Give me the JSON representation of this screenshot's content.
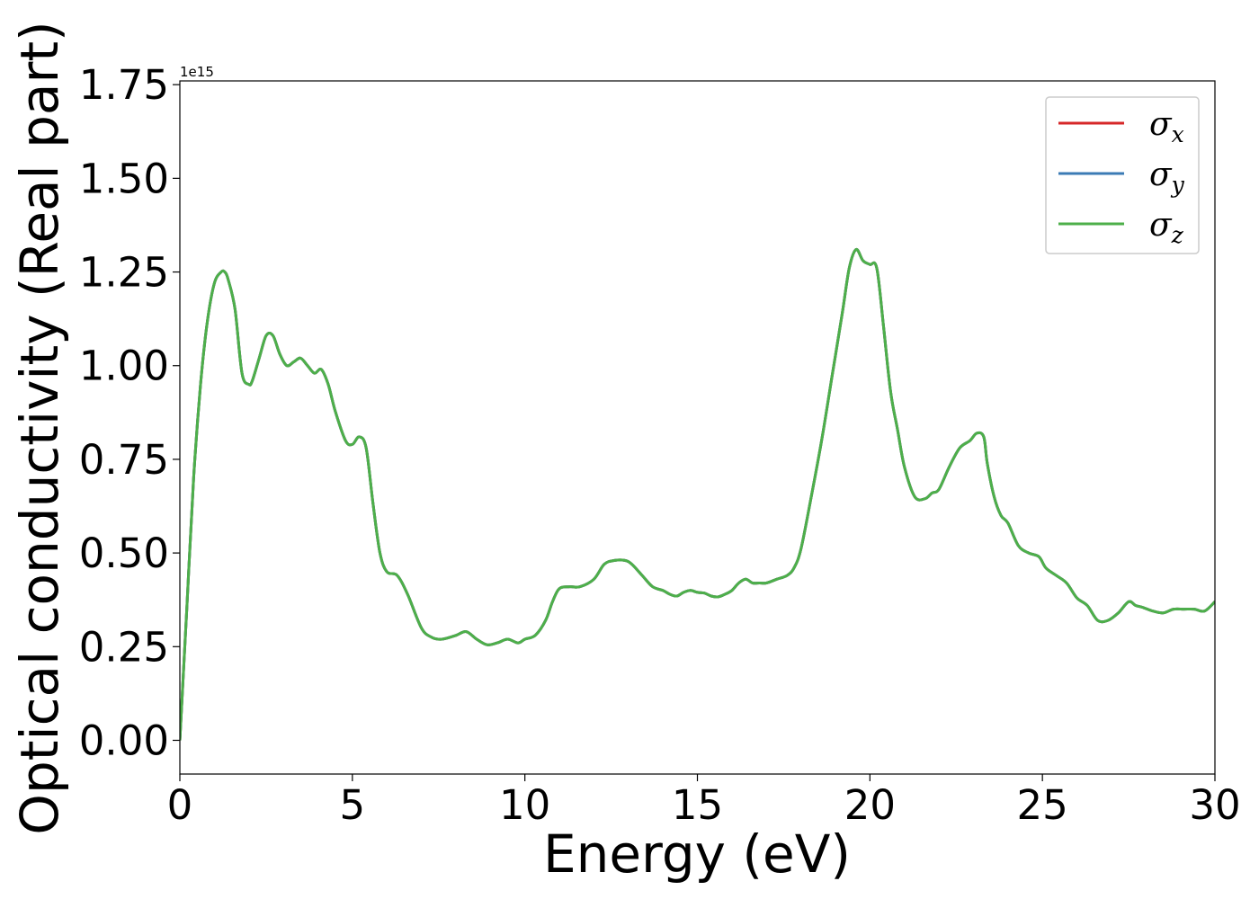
{
  "chart_data": {
    "type": "line",
    "xlabel": "Energy (eV)",
    "ylabel": "Optical conductivity (Real part)",
    "y_offset_text": "1e15",
    "xlim": [
      0,
      30
    ],
    "ylim": [
      -0.09,
      1.76
    ],
    "y_scale": 1000000000000000.0,
    "x_ticks": [
      0,
      5,
      10,
      15,
      20,
      25,
      30
    ],
    "x_tick_labels": [
      "0",
      "5",
      "10",
      "15",
      "20",
      "25",
      "30"
    ],
    "y_ticks": [
      0.0,
      0.25,
      0.5,
      0.75,
      1.0,
      1.25,
      1.5,
      1.75
    ],
    "y_tick_labels": [
      "0.00",
      "0.25",
      "0.50",
      "0.75",
      "1.00",
      "1.25",
      "1.50",
      "1.75"
    ],
    "grid": false,
    "legend_position": "top-right",
    "series": [
      {
        "name": "σ",
        "subscript": "x",
        "color": "#d62728"
      },
      {
        "name": "σ",
        "subscript": "y",
        "color": "#3b7bb5"
      },
      {
        "name": "σ",
        "subscript": "z",
        "color": "#4daf4a"
      }
    ],
    "x": [
      0,
      0.2,
      0.4,
      0.6,
      0.8,
      1.0,
      1.2,
      1.3,
      1.4,
      1.6,
      1.8,
      2.0,
      2.1,
      2.3,
      2.5,
      2.7,
      2.9,
      3.1,
      3.3,
      3.5,
      3.7,
      3.9,
      4.1,
      4.3,
      4.5,
      4.8,
      5.0,
      5.2,
      5.4,
      5.6,
      5.8,
      6.0,
      6.3,
      6.6,
      7.0,
      7.3,
      7.6,
      8.0,
      8.3,
      8.6,
      8.9,
      9.2,
      9.5,
      9.8,
      10.0,
      10.3,
      10.6,
      10.8,
      11.0,
      11.3,
      11.6,
      12.0,
      12.3,
      12.6,
      12.9,
      13.1,
      13.4,
      13.7,
      14.0,
      14.2,
      14.4,
      14.6,
      14.8,
      15.0,
      15.2,
      15.4,
      15.6,
      15.8,
      16.0,
      16.2,
      16.4,
      16.6,
      16.8,
      17.0,
      17.3,
      17.6,
      17.8,
      18.0,
      18.3,
      18.6,
      18.9,
      19.2,
      19.4,
      19.6,
      19.8,
      20.0,
      20.2,
      20.4,
      20.6,
      20.8,
      21.0,
      21.3,
      21.6,
      21.8,
      22.0,
      22.3,
      22.6,
      22.9,
      23.1,
      23.3,
      23.4,
      23.6,
      23.8,
      24.0,
      24.3,
      24.6,
      24.9,
      25.1,
      25.4,
      25.7,
      26.0,
      26.3,
      26.6,
      26.9,
      27.2,
      27.5,
      27.7,
      27.9,
      28.2,
      28.5,
      28.8,
      29.1,
      29.4,
      29.7,
      30.0
    ],
    "values": [
      0.0,
      0.35,
      0.7,
      0.95,
      1.12,
      1.22,
      1.25,
      1.25,
      1.23,
      1.15,
      0.98,
      0.95,
      0.96,
      1.02,
      1.08,
      1.08,
      1.03,
      1.0,
      1.01,
      1.02,
      1.0,
      0.98,
      0.99,
      0.95,
      0.88,
      0.8,
      0.79,
      0.81,
      0.78,
      0.63,
      0.5,
      0.45,
      0.44,
      0.39,
      0.3,
      0.275,
      0.27,
      0.28,
      0.29,
      0.27,
      0.255,
      0.26,
      0.27,
      0.26,
      0.27,
      0.28,
      0.32,
      0.37,
      0.405,
      0.41,
      0.41,
      0.43,
      0.47,
      0.48,
      0.48,
      0.47,
      0.44,
      0.41,
      0.4,
      0.39,
      0.385,
      0.395,
      0.4,
      0.395,
      0.393,
      0.385,
      0.383,
      0.39,
      0.4,
      0.42,
      0.43,
      0.42,
      0.42,
      0.42,
      0.43,
      0.44,
      0.46,
      0.51,
      0.65,
      0.8,
      0.97,
      1.14,
      1.26,
      1.31,
      1.28,
      1.27,
      1.26,
      1.1,
      0.93,
      0.83,
      0.73,
      0.65,
      0.645,
      0.66,
      0.67,
      0.73,
      0.78,
      0.8,
      0.82,
      0.81,
      0.74,
      0.65,
      0.6,
      0.58,
      0.52,
      0.5,
      0.49,
      0.46,
      0.44,
      0.42,
      0.38,
      0.36,
      0.32,
      0.32,
      0.34,
      0.37,
      0.36,
      0.355,
      0.345,
      0.34,
      0.35,
      0.35,
      0.35,
      0.345,
      0.37
    ]
  }
}
